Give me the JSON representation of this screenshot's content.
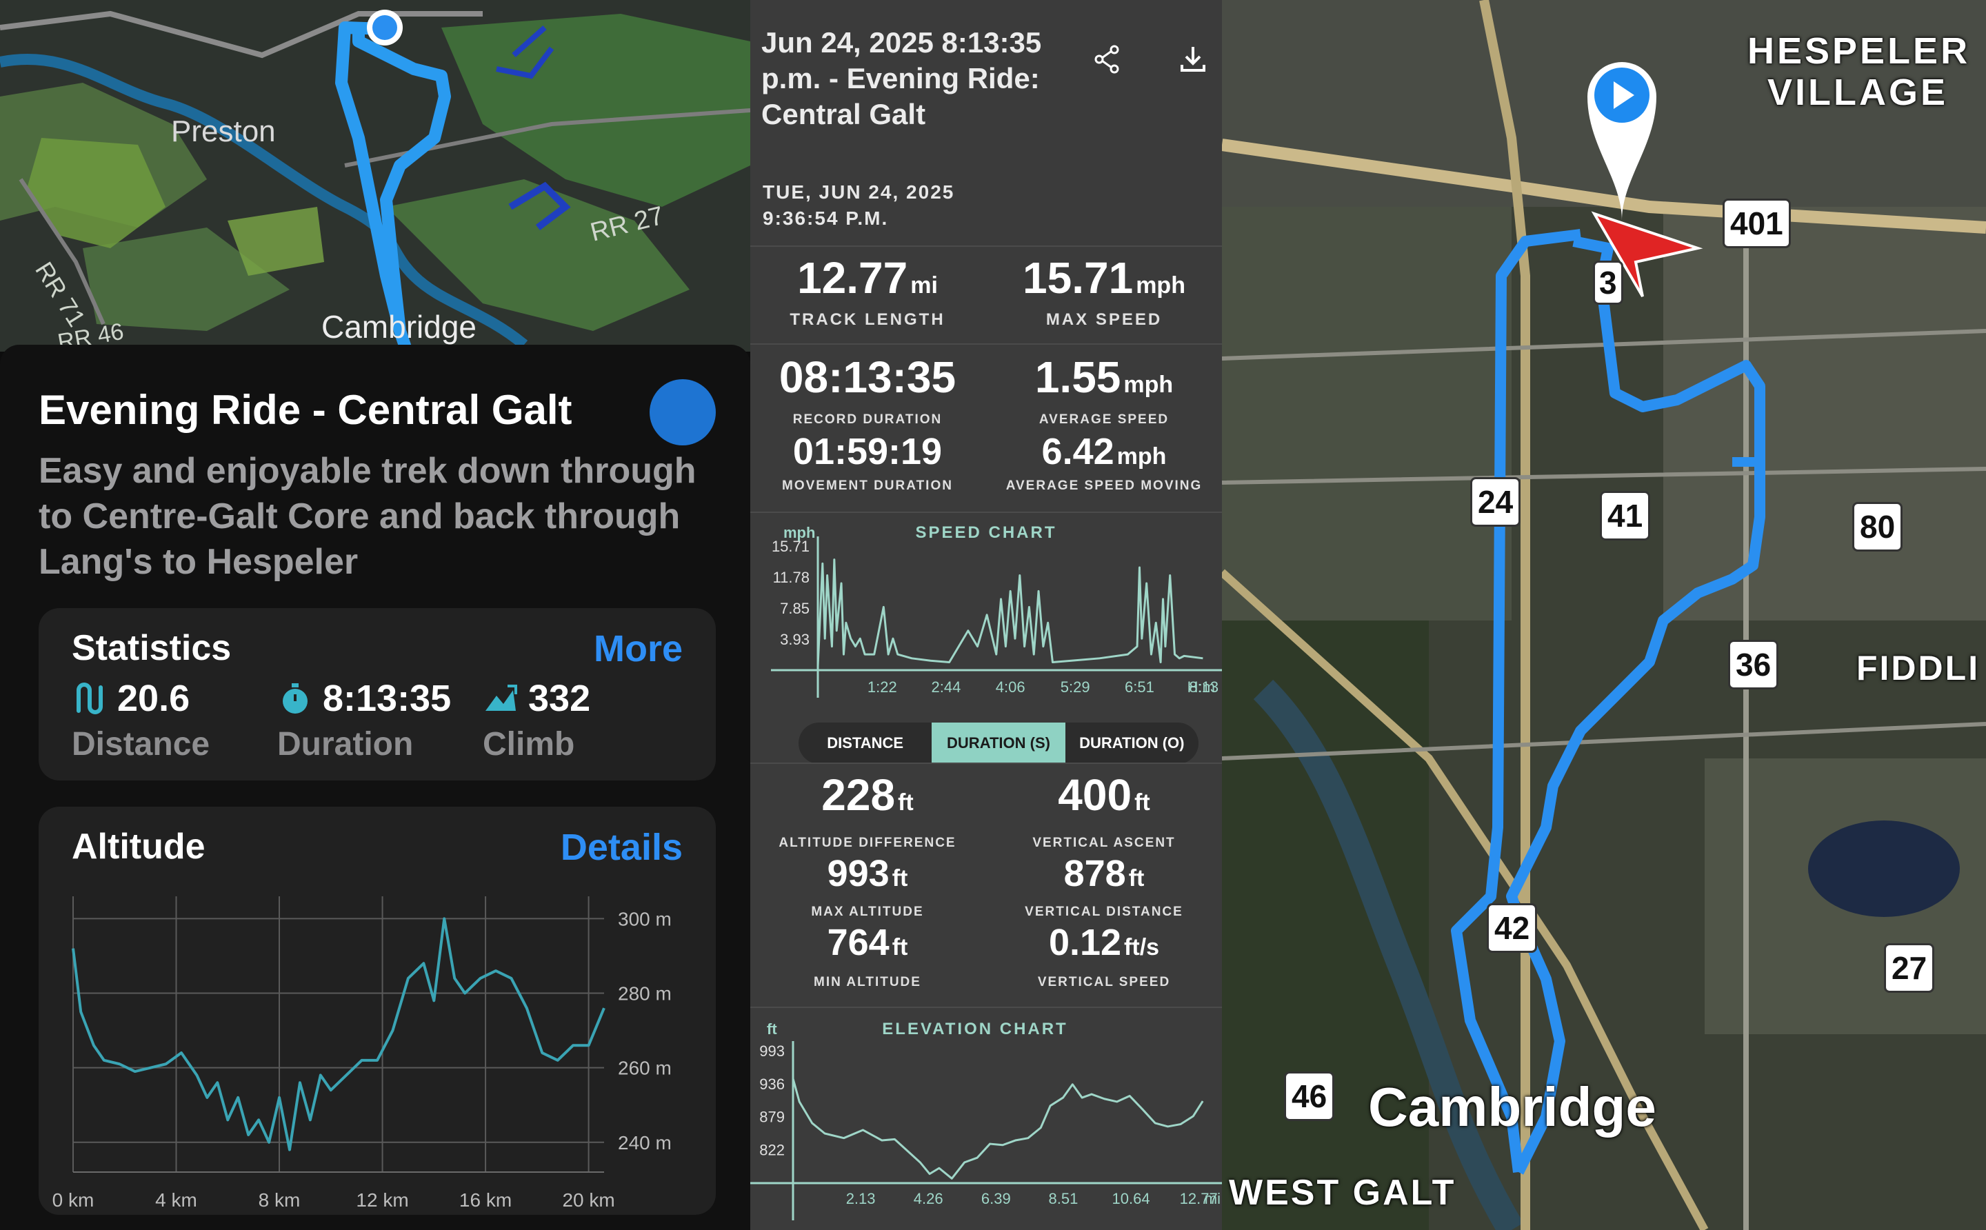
{
  "left": {
    "map_labels": {
      "preston": "Preston",
      "cambridge": "Cambridge",
      "rr27": "RR 27",
      "rr71": "RR 71",
      "rr46": "RR 46"
    },
    "route": {
      "title": "Evening Ride - Central Galt",
      "description": "Easy and enjoyable trek down through to Centre-Galt Core and back through Lang's to Hespeler",
      "accent_color": "#1e74d2"
    },
    "statistics": {
      "heading": "Statistics",
      "more_label": "More",
      "items": [
        {
          "icon": "route-icon",
          "value": "20.6",
          "label": "Distance"
        },
        {
          "icon": "stopwatch-icon",
          "value": "8:13:35",
          "label": "Duration"
        },
        {
          "icon": "climb-icon",
          "value": "332",
          "label": "Climb"
        }
      ]
    },
    "altitude": {
      "heading": "Altitude",
      "details_label": "Details",
      "chart_data": {
        "type": "line",
        "x_ticks": [
          "0 km",
          "4 km",
          "8 km",
          "12 km",
          "16 km",
          "20 km"
        ],
        "y_ticks": [
          "300 m",
          "280 m",
          "260 m",
          "240 m"
        ],
        "xlim": [
          0,
          20.6
        ],
        "ylim": [
          232,
          306
        ],
        "x": [
          0,
          0.3,
          0.8,
          1.2,
          1.8,
          2.4,
          3.0,
          3.6,
          4.2,
          4.8,
          5.2,
          5.6,
          6.0,
          6.4,
          6.8,
          7.2,
          7.6,
          8.0,
          8.4,
          8.8,
          9.2,
          9.6,
          10.0,
          10.6,
          11.2,
          11.8,
          12.4,
          13.0,
          13.6,
          14.0,
          14.4,
          14.8,
          15.2,
          15.8,
          16.4,
          17.0,
          17.6,
          18.2,
          18.8,
          19.4,
          20.0,
          20.6
        ],
        "y": [
          292,
          275,
          266,
          262,
          261,
          259,
          260,
          261,
          264,
          258,
          252,
          256,
          246,
          252,
          242,
          246,
          240,
          252,
          238,
          256,
          246,
          258,
          254,
          258,
          262,
          262,
          270,
          284,
          288,
          278,
          300,
          284,
          280,
          284,
          286,
          284,
          276,
          264,
          262,
          266,
          266,
          276
        ],
        "line_color": "#3aa4b4"
      }
    }
  },
  "mid": {
    "header": {
      "title": "Jun 24, 2025 8:13:35 p.m. - Evening Ride: Central Galt",
      "subtitle_line1": "TUE, JUN 24, 2025",
      "subtitle_line2": "9:36:54 P.M."
    },
    "stats": {
      "track_length": {
        "value": "12.77",
        "unit": "mi",
        "label": "TRACK LENGTH"
      },
      "max_speed": {
        "value": "15.71",
        "unit": "mph",
        "label": "MAX SPEED"
      },
      "record_duration": {
        "value": "08:13:35",
        "label": "RECORD DURATION"
      },
      "average_speed": {
        "value": "1.55",
        "unit": "mph",
        "label": "AVERAGE SPEED"
      },
      "movement_duration": {
        "value": "01:59:19",
        "label": "MOVEMENT DURATION"
      },
      "avg_speed_moving": {
        "value": "6.42",
        "unit": "mph",
        "label": "AVERAGE SPEED MOVING"
      }
    },
    "speed_chart": {
      "title": "SPEED CHART",
      "y_unit": "mph",
      "x_unit": "H:m",
      "chart_data": {
        "type": "line",
        "y_ticks": [
          "15.71",
          "11.78",
          "7.85",
          "3.93"
        ],
        "x_ticks": [
          "1:22",
          "2:44",
          "4:06",
          "5:29",
          "6:51",
          "8:13"
        ],
        "xlim": [
          0,
          8.4
        ],
        "ylim": [
          0,
          15.71
        ],
        "x": [
          0.0,
          0.1,
          0.15,
          0.2,
          0.3,
          0.35,
          0.4,
          0.5,
          0.55,
          0.6,
          0.7,
          0.8,
          0.9,
          1.0,
          1.2,
          1.4,
          1.5,
          1.6,
          1.7,
          2.0,
          2.4,
          2.8,
          3.0,
          3.2,
          3.4,
          3.6,
          3.8,
          3.9,
          4.0,
          4.1,
          4.2,
          4.3,
          4.4,
          4.5,
          4.6,
          4.7,
          4.8,
          4.9,
          5.0,
          5.4,
          6.0,
          6.6,
          6.8,
          6.85,
          6.9,
          7.0,
          7.1,
          7.2,
          7.3,
          7.35,
          7.4,
          7.5,
          7.6,
          7.7,
          7.8,
          8.2
        ],
        "y": [
          0.5,
          13.5,
          4,
          12,
          3,
          14,
          5,
          11,
          2,
          6,
          4,
          3,
          4,
          2,
          2,
          8,
          2,
          4,
          2,
          1.5,
          1.2,
          1,
          3,
          5,
          3,
          7,
          2,
          9,
          3,
          10,
          4,
          12,
          3,
          8,
          2,
          10,
          3,
          6,
          1,
          1.2,
          1.5,
          2,
          3,
          13,
          4,
          11,
          2,
          6,
          1,
          9,
          3,
          12,
          2,
          1.5,
          1.8,
          1.5
        ],
        "line_color": "#9fd6c8"
      }
    },
    "tabs": [
      {
        "label": "DISTANCE",
        "active": false
      },
      {
        "label": "DURATION (S)",
        "active": true
      },
      {
        "label": "DURATION (O)",
        "active": false
      }
    ],
    "elevation_stats": {
      "altitude_difference": {
        "value": "228",
        "unit": "ft",
        "label": "ALTITUDE DIFFERENCE"
      },
      "vertical_ascent": {
        "value": "400",
        "unit": "ft",
        "label": "VERTICAL ASCENT"
      },
      "max_altitude": {
        "value": "993",
        "unit": "ft",
        "label": "MAX ALTITUDE"
      },
      "vertical_distance": {
        "value": "878",
        "unit": "ft",
        "label": "VERTICAL DISTANCE"
      },
      "min_altitude": {
        "value": "764",
        "unit": "ft",
        "label": "MIN ALTITUDE"
      },
      "vertical_speed": {
        "value": "0.12",
        "unit": "ft/s",
        "label": "VERTICAL SPEED"
      }
    },
    "elevation_chart": {
      "title": "ELEVATION CHART",
      "y_unit": "ft",
      "x_unit": "mi",
      "chart_data": {
        "type": "line",
        "y_ticks": [
          "993",
          "936",
          "879",
          "822"
        ],
        "x_ticks": [
          "2.13",
          "4.26",
          "6.39",
          "8.51",
          "10.64",
          "12.77"
        ],
        "xlim": [
          0,
          13.2
        ],
        "ylim": [
          764,
          1010
        ],
        "x": [
          0,
          0.2,
          0.6,
          1.0,
          1.6,
          2.2,
          2.8,
          3.2,
          3.6,
          4.0,
          4.3,
          4.6,
          5.0,
          5.4,
          5.8,
          6.2,
          6.6,
          7.0,
          7.4,
          7.8,
          8.1,
          8.5,
          8.8,
          9.1,
          9.4,
          9.8,
          10.2,
          10.6,
          11.0,
          11.4,
          11.8,
          12.2,
          12.6,
          12.9
        ],
        "y": [
          945,
          905,
          868,
          850,
          842,
          856,
          838,
          840,
          820,
          800,
          780,
          790,
          772,
          800,
          808,
          832,
          830,
          838,
          842,
          860,
          898,
          912,
          935,
          912,
          918,
          910,
          905,
          915,
          892,
          868,
          862,
          866,
          880,
          906
        ],
        "line_color": "#9fd6c8"
      }
    }
  },
  "right": {
    "labels": {
      "hespeler": "HESPELER VILLAGE",
      "cambridge": "Cambridge",
      "west_galt": "WEST GALT",
      "fiddle": "FIDDLI"
    },
    "road_shields": [
      "401",
      "24",
      "41",
      "80",
      "36",
      "42",
      "27",
      "46",
      "3"
    ],
    "route_color": "#2a8ff0"
  }
}
